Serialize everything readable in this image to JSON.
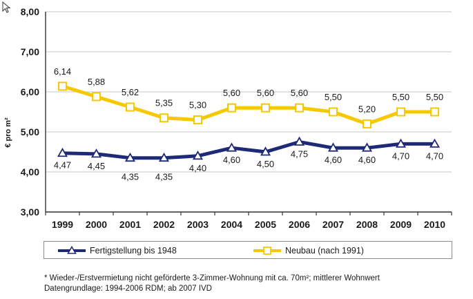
{
  "chart_data": {
    "type": "line",
    "title": "",
    "ylabel": "€ pro m²",
    "xlabel": "",
    "ylim": [
      3.0,
      8.0
    ],
    "yticks": [
      "3,00",
      "4,00",
      "5,00",
      "6,00",
      "7,00",
      "8,00"
    ],
    "grid": true,
    "categories": [
      "1999",
      "2000",
      "2001",
      "2002",
      "2003",
      "2004",
      "2005",
      "2006",
      "2007",
      "2008",
      "2009",
      "2010"
    ],
    "series": [
      {
        "name": "Fertigstellung bis 1948",
        "color": "#1e2a78",
        "marker": "triangle",
        "values": [
          4.47,
          4.45,
          4.35,
          4.35,
          4.4,
          4.6,
          4.5,
          4.75,
          4.6,
          4.6,
          4.7,
          4.7
        ],
        "labels": [
          "4,47",
          "4,45",
          "4,35",
          "4,35",
          "4,40",
          "4,60",
          "4,50",
          "4,75",
          "4,60",
          "4,60",
          "4,70",
          "4,70"
        ]
      },
      {
        "name": "Neubau (nach 1991)",
        "color": "#f5c800",
        "marker": "square",
        "values": [
          6.14,
          5.88,
          5.62,
          5.35,
          5.3,
          5.6,
          5.6,
          5.6,
          5.5,
          5.2,
          5.5,
          5.5
        ],
        "labels": [
          "6,14",
          "5,88",
          "5,62",
          "5,35",
          "5,30",
          "5,60",
          "5,60",
          "5,60",
          "5,50",
          "5,20",
          "5,50",
          "5,50"
        ]
      }
    ],
    "legend_position": "bottom"
  },
  "footnote": {
    "line1": "* Wieder-/Erstvermietung nicht geförderte 3-Zimmer-Wohnung mit ca. 70m²; mittlerer Wohnwert",
    "line2": "Datengrundlage: 1994-2006 RDM; ab 2007 IVD"
  },
  "icons": {
    "cursor": "mouse-pointer-icon"
  }
}
